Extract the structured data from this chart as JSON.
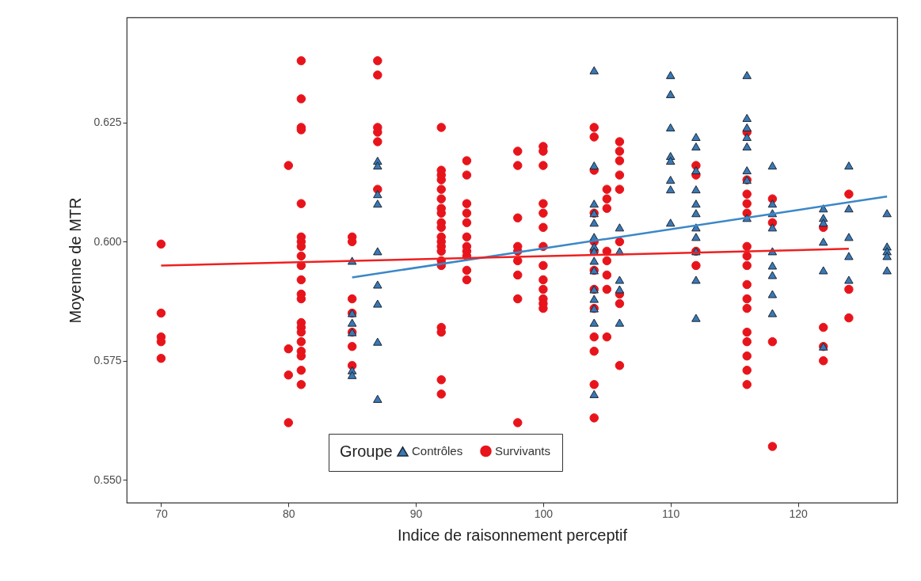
{
  "chart_data": {
    "type": "scatter",
    "xlabel": "Indice de raisonnement perceptif",
    "ylabel": "Moyenne de MTR",
    "legend_title": "Groupe",
    "legend": "bottom",
    "xlim": [
      67.3,
      127.8
    ],
    "ylim": [
      0.5452,
      0.6471
    ],
    "xticks": [
      70,
      80,
      90,
      100,
      110,
      120
    ],
    "yticks": [
      {
        "value": 0.55,
        "label": "0.550"
      },
      {
        "value": 0.575,
        "label": "0.575"
      },
      {
        "value": 0.6,
        "label": "0.600"
      },
      {
        "value": 0.625,
        "label": "0.625"
      }
    ],
    "series": [
      {
        "name": "Contrôles",
        "type": "scatter",
        "marker": "triangle",
        "color": "#3a78b5",
        "x": [
          85,
          85,
          85,
          85,
          85,
          85,
          87,
          87,
          87,
          87,
          87,
          87,
          87,
          87,
          87,
          104,
          104,
          104,
          104,
          104,
          104,
          104,
          104,
          104,
          104,
          104,
          104,
          104,
          104,
          104,
          106,
          106,
          106,
          106,
          106,
          110,
          110,
          110,
          110,
          110,
          110,
          110,
          110,
          112,
          112,
          112,
          112,
          112,
          112,
          112,
          112,
          112,
          112,
          112,
          116,
          116,
          116,
          116,
          116,
          116,
          116,
          116,
          118,
          118,
          118,
          118,
          118,
          118,
          118,
          118,
          118,
          122,
          122,
          122,
          122,
          122,
          122,
          124,
          124,
          124,
          124,
          124,
          127,
          127,
          127,
          127,
          127
        ],
        "values": [
          0.596,
          0.585,
          0.583,
          0.581,
          0.573,
          0.572,
          0.617,
          0.616,
          0.61,
          0.608,
          0.598,
          0.591,
          0.587,
          0.579,
          0.567,
          0.636,
          0.616,
          0.608,
          0.606,
          0.604,
          0.601,
          0.599,
          0.598,
          0.596,
          0.594,
          0.59,
          0.588,
          0.586,
          0.583,
          0.568,
          0.603,
          0.598,
          0.592,
          0.59,
          0.583,
          0.635,
          0.631,
          0.624,
          0.618,
          0.617,
          0.613,
          0.611,
          0.604,
          0.622,
          0.62,
          0.615,
          0.611,
          0.608,
          0.606,
          0.603,
          0.601,
          0.598,
          0.592,
          0.584,
          0.635,
          0.626,
          0.624,
          0.622,
          0.62,
          0.615,
          0.613,
          0.605,
          0.616,
          0.608,
          0.606,
          0.603,
          0.598,
          0.595,
          0.593,
          0.589,
          0.585,
          0.607,
          0.605,
          0.604,
          0.6,
          0.594,
          0.578,
          0.616,
          0.607,
          0.601,
          0.597,
          0.592,
          0.606,
          0.599,
          0.598,
          0.597,
          0.594
        ]
      },
      {
        "name": "Survivants",
        "type": "scatter",
        "marker": "circle",
        "color": "#e8141b",
        "x": [
          70,
          70,
          70,
          70,
          70,
          80,
          80,
          80,
          80,
          81,
          81,
          81,
          81,
          81,
          81,
          81,
          81,
          81,
          81,
          81,
          81,
          81,
          81,
          81,
          81,
          81,
          81,
          81,
          81,
          81,
          85,
          85,
          85,
          85,
          85,
          85,
          85,
          87,
          87,
          87,
          87,
          87,
          87,
          92,
          92,
          92,
          92,
          92,
          92,
          92,
          92,
          92,
          92,
          92,
          92,
          92,
          92,
          92,
          92,
          92,
          92,
          92,
          92,
          94,
          94,
          94,
          94,
          94,
          94,
          94,
          94,
          94,
          94,
          94,
          98,
          98,
          98,
          98,
          98,
          98,
          98,
          98,
          98,
          100,
          100,
          100,
          100,
          100,
          100,
          100,
          100,
          100,
          100,
          100,
          100,
          100,
          104,
          104,
          104,
          104,
          104,
          104,
          104,
          104,
          104,
          104,
          104,
          104,
          104,
          105,
          105,
          105,
          105,
          105,
          105,
          105,
          105,
          106,
          106,
          106,
          106,
          106,
          106,
          106,
          106,
          106,
          112,
          112,
          112,
          112,
          116,
          116,
          116,
          116,
          116,
          116,
          116,
          116,
          116,
          116,
          116,
          116,
          116,
          116,
          116,
          116,
          118,
          118,
          118,
          118,
          122,
          122,
          122,
          122,
          124,
          124,
          124
        ],
        "values": [
          0.5995,
          0.585,
          0.58,
          0.579,
          0.5755,
          0.616,
          0.5775,
          0.572,
          0.562,
          0.638,
          0.63,
          0.624,
          0.6235,
          0.608,
          0.601,
          0.6,
          0.599,
          0.597,
          0.595,
          0.592,
          0.589,
          0.588,
          0.583,
          0.582,
          0.581,
          0.579,
          0.577,
          0.576,
          0.573,
          0.57,
          0.601,
          0.6,
          0.588,
          0.585,
          0.581,
          0.578,
          0.574,
          0.638,
          0.635,
          0.624,
          0.623,
          0.621,
          0.611,
          0.624,
          0.615,
          0.614,
          0.613,
          0.611,
          0.609,
          0.607,
          0.606,
          0.604,
          0.603,
          0.601,
          0.6,
          0.599,
          0.598,
          0.596,
          0.595,
          0.582,
          0.581,
          0.571,
          0.568,
          0.617,
          0.614,
          0.608,
          0.606,
          0.604,
          0.601,
          0.599,
          0.598,
          0.597,
          0.594,
          0.592,
          0.619,
          0.616,
          0.605,
          0.599,
          0.598,
          0.596,
          0.593,
          0.588,
          0.562,
          0.62,
          0.619,
          0.616,
          0.608,
          0.606,
          0.603,
          0.599,
          0.595,
          0.592,
          0.59,
          0.588,
          0.587,
          0.586,
          0.624,
          0.622,
          0.615,
          0.606,
          0.6,
          0.598,
          0.594,
          0.59,
          0.586,
          0.58,
          0.577,
          0.57,
          0.563,
          0.611,
          0.609,
          0.607,
          0.598,
          0.596,
          0.593,
          0.59,
          0.58,
          0.621,
          0.619,
          0.617,
          0.614,
          0.611,
          0.6,
          0.589,
          0.587,
          0.574,
          0.616,
          0.614,
          0.598,
          0.595,
          0.623,
          0.613,
          0.61,
          0.608,
          0.606,
          0.599,
          0.597,
          0.595,
          0.591,
          0.588,
          0.586,
          0.581,
          0.579,
          0.576,
          0.573,
          0.57,
          0.609,
          0.604,
          0.579,
          0.557,
          0.603,
          0.582,
          0.578,
          0.575,
          0.61,
          0.59,
          0.584
        ]
      },
      {
        "type": "line",
        "color": "#ee2020",
        "x": [
          70,
          124
        ],
        "values": [
          0.595,
          0.5985
        ]
      },
      {
        "type": "line",
        "color": "#3b87c8",
        "x": [
          85,
          127
        ],
        "values": [
          0.5925,
          0.6095
        ]
      }
    ]
  }
}
